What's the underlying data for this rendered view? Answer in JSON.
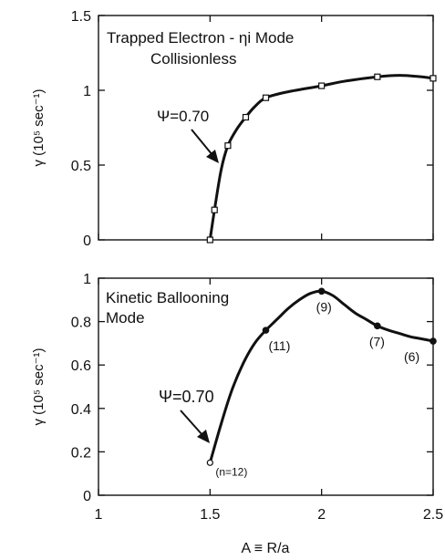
{
  "figure": {
    "xlabel": "A ≡ R/a",
    "x_ticks": [
      1,
      1.5,
      2,
      2.5
    ],
    "x_tick_labels": [
      "1",
      "1.5",
      "2",
      "2.5"
    ],
    "xlim": [
      1,
      2.5
    ]
  },
  "chart_data": [
    {
      "type": "line",
      "title": "Trapped Electron - ηi Mode",
      "subtitle": "Collisionless",
      "annotation": "Ψ=0.70",
      "ylabel": "γ (10⁵ sec⁻¹)",
      "ylim": [
        0,
        1.5
      ],
      "y_ticks": [
        0,
        0.5,
        1,
        1.5
      ],
      "y_tick_labels": [
        "0",
        "0.5",
        "1",
        "1.5"
      ],
      "marker": "square",
      "series": [
        {
          "x": [
            1.5,
            1.52,
            1.58,
            1.66,
            1.75,
            2.0,
            2.25,
            2.5
          ],
          "y": [
            0.0,
            0.2,
            0.63,
            0.82,
            0.95,
            1.03,
            1.09,
            1.08
          ]
        }
      ],
      "curve_x": [
        1.5,
        1.52,
        1.55,
        1.58,
        1.62,
        1.66,
        1.7,
        1.75,
        1.85,
        2.0,
        2.1,
        2.25,
        2.35,
        2.45,
        2.5
      ],
      "curve_y": [
        0.0,
        0.2,
        0.47,
        0.63,
        0.74,
        0.82,
        0.89,
        0.95,
        0.99,
        1.03,
        1.06,
        1.09,
        1.1,
        1.09,
        1.08
      ]
    },
    {
      "type": "line",
      "title": "Kinetic Ballooning",
      "subtitle": "Mode",
      "annotation": "Ψ=0.70",
      "ylabel": "γ (10⁵ sec⁻¹)",
      "ylim": [
        0,
        1
      ],
      "y_ticks": [
        0,
        0.2,
        0.4,
        0.6,
        0.8,
        1
      ],
      "y_tick_labels": [
        "0",
        "0.2",
        "0.4",
        "0.6",
        "0.8",
        "1"
      ],
      "marker": "circle",
      "series": [
        {
          "x": [
            1.5,
            1.75,
            2.0,
            2.25,
            2.5
          ],
          "y": [
            0.15,
            0.76,
            0.94,
            0.78,
            0.71
          ],
          "labels": [
            "(n=12)",
            "(11)",
            "(9)",
            "(7)",
            "(6)"
          ]
        }
      ],
      "curve_x": [
        1.5,
        1.55,
        1.6,
        1.65,
        1.7,
        1.75,
        1.8,
        1.85,
        1.9,
        1.95,
        2.0,
        2.05,
        2.1,
        2.15,
        2.2,
        2.25,
        2.3,
        2.35,
        2.4,
        2.45,
        2.5
      ],
      "curve_y": [
        0.15,
        0.33,
        0.49,
        0.61,
        0.7,
        0.76,
        0.81,
        0.86,
        0.9,
        0.93,
        0.94,
        0.92,
        0.88,
        0.84,
        0.81,
        0.78,
        0.76,
        0.745,
        0.73,
        0.72,
        0.71
      ]
    }
  ]
}
